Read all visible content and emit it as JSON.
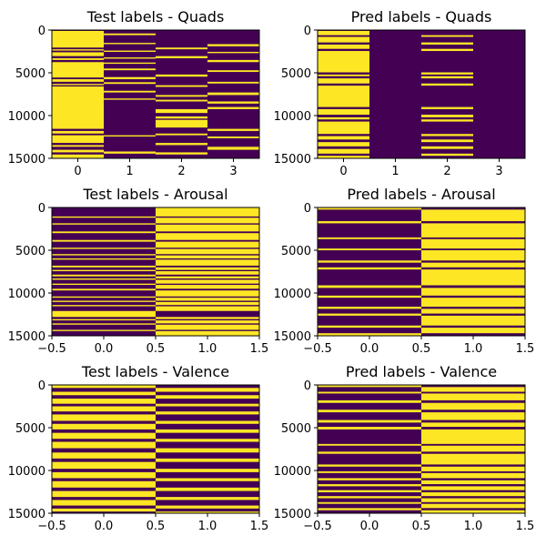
{
  "colors": {
    "class_zero": "#440154",
    "class_one": "#FDE725",
    "axes": "#000000",
    "background": "#FFFFFF"
  },
  "chart_data": [
    {
      "type": "heatmap",
      "title": "Test labels - Quads",
      "xlabel": "",
      "ylabel": "",
      "xlim": [
        -0.5,
        3.5
      ],
      "ylim": [
        15000,
        0
      ],
      "grid": false,
      "x_ticks": [
        0,
        1,
        2,
        3
      ],
      "y_ticks": [
        0,
        5000,
        10000,
        15000
      ],
      "columns": [
        0,
        1,
        2,
        3
      ],
      "values_description_scheme": "one-hot rows; each column lists [start,end] row ranges where value=1",
      "series": [
        {
          "column": 0,
          "ones": [
            [
              100,
              2050
            ],
            [
              2250,
              2400
            ],
            [
              2600,
              3050
            ],
            [
              3300,
              3500
            ],
            [
              3750,
              5550
            ],
            [
              5750,
              6050
            ],
            [
              6300,
              6450
            ],
            [
              6600,
              11550
            ],
            [
              11800,
              12100
            ],
            [
              12300,
              13200
            ],
            [
              13450,
              13650
            ],
            [
              14000,
              14300
            ],
            [
              14550,
              15050
            ]
          ]
        },
        {
          "column": 1,
          "ones": [
            [
              400,
              600
            ],
            [
              1500,
              1650
            ],
            [
              2400,
              2550
            ],
            [
              3200,
              3350
            ],
            [
              3800,
              3950
            ],
            [
              4500,
              4700
            ],
            [
              5500,
              5750
            ],
            [
              6100,
              6300
            ],
            [
              7100,
              7300
            ],
            [
              8000,
              8150
            ],
            [
              12300,
              12450
            ],
            [
              14200,
              14450
            ]
          ]
        },
        {
          "column": 2,
          "ones": [
            [
              2050,
              2250
            ],
            [
              3050,
              3300
            ],
            [
              5200,
              5450
            ],
            [
              6450,
              6650
            ],
            [
              7600,
              7800
            ],
            [
              8150,
              8350
            ],
            [
              9250,
              9700
            ],
            [
              10100,
              10350
            ],
            [
              10500,
              11400
            ],
            [
              12100,
              12300
            ],
            [
              13200,
              13450
            ],
            [
              14300,
              14550
            ]
          ]
        },
        {
          "column": 3,
          "ones": [
            [
              1650,
              1900
            ],
            [
              2550,
              2700
            ],
            [
              3500,
              3750
            ],
            [
              4700,
              4900
            ],
            [
              6050,
              6250
            ],
            [
              7300,
              7600
            ],
            [
              8350,
              8600
            ],
            [
              9000,
              9250
            ],
            [
              11550,
              11800
            ],
            [
              12450,
              12650
            ],
            [
              13650,
              14000
            ]
          ]
        }
      ]
    },
    {
      "type": "heatmap",
      "title": "Pred labels - Quads",
      "xlabel": "",
      "ylabel": "",
      "xlim": [
        -0.5,
        3.5
      ],
      "ylim": [
        15000,
        0
      ],
      "grid": false,
      "x_ticks": [
        0,
        1,
        2,
        3
      ],
      "y_ticks": [
        0,
        5000,
        10000,
        15000
      ],
      "columns": [
        0,
        1,
        2,
        3
      ],
      "values_description_scheme": "one-hot rows; each column lists [start,end] row ranges where value=1",
      "series": [
        {
          "column": 0,
          "ones": [
            [
              100,
              600
            ],
            [
              800,
              1450
            ],
            [
              1700,
              2200
            ],
            [
              2450,
              4950
            ],
            [
              5200,
              5400
            ],
            [
              5650,
              6250
            ],
            [
              6500,
              9000
            ],
            [
              9250,
              9900
            ],
            [
              10200,
              10450
            ],
            [
              10700,
              12150
            ],
            [
              12400,
              12800
            ],
            [
              13100,
              13600
            ],
            [
              13900,
              14450
            ],
            [
              14700,
              14950
            ]
          ]
        },
        {
          "column": 1,
          "ones": []
        },
        {
          "column": 2,
          "ones": [
            [
              600,
              800
            ],
            [
              1450,
              1700
            ],
            [
              2200,
              2450
            ],
            [
              4950,
              5200
            ],
            [
              5400,
              5650
            ],
            [
              6250,
              6500
            ],
            [
              9000,
              9250
            ],
            [
              9900,
              10200
            ],
            [
              10450,
              10700
            ],
            [
              12150,
              12400
            ],
            [
              12800,
              13100
            ],
            [
              13600,
              13900
            ],
            [
              14450,
              14700
            ]
          ]
        },
        {
          "column": 3,
          "ones": []
        }
      ]
    },
    {
      "type": "heatmap",
      "title": "Test labels - Arousal",
      "xlabel": "",
      "ylabel": "",
      "xlim": [
        -0.5,
        1.5
      ],
      "ylim": [
        15000,
        0
      ],
      "grid": false,
      "x_ticks": [
        -0.5,
        0.0,
        0.5,
        1.0,
        1.5
      ],
      "y_ticks": [
        0,
        5000,
        10000,
        15000
      ],
      "columns": [
        0,
        1
      ],
      "values_description_scheme": "one-hot rows; each column lists [start,end] row ranges where value=1",
      "series": [
        {
          "column": 0,
          "ones": [
            [
              1050,
              1200
            ],
            [
              1850,
              2000
            ],
            [
              2800,
              3000
            ],
            [
              3800,
              4000
            ],
            [
              4700,
              4850
            ],
            [
              5450,
              5600
            ],
            [
              5950,
              6100
            ],
            [
              6800,
              7000
            ],
            [
              7300,
              7450
            ],
            [
              7850,
              8050
            ],
            [
              8300,
              8450
            ],
            [
              8900,
              9050
            ],
            [
              9500,
              9700
            ],
            [
              10400,
              10550
            ],
            [
              10900,
              11050
            ],
            [
              11400,
              11550
            ],
            [
              12100,
              12800
            ],
            [
              13050,
              13200
            ],
            [
              13550,
              13700
            ],
            [
              14300,
              14450
            ]
          ]
        },
        {
          "column": 1,
          "ones": [
            [
              0,
              1050
            ],
            [
              1200,
              1850
            ],
            [
              2000,
              2800
            ],
            [
              3000,
              3800
            ],
            [
              4000,
              4700
            ],
            [
              4850,
              5450
            ],
            [
              5600,
              5950
            ],
            [
              6100,
              6800
            ],
            [
              7000,
              7300
            ],
            [
              7450,
              7850
            ],
            [
              8050,
              8300
            ],
            [
              8450,
              8900
            ],
            [
              9050,
              9500
            ],
            [
              9700,
              10400
            ],
            [
              10550,
              10900
            ],
            [
              11050,
              11400
            ],
            [
              11550,
              12100
            ],
            [
              12800,
              13050
            ],
            [
              13200,
              13550
            ],
            [
              13700,
              14300
            ],
            [
              14450,
              15100
            ]
          ]
        }
      ]
    },
    {
      "type": "heatmap",
      "title": "Pred labels - Arousal",
      "xlabel": "",
      "ylabel": "",
      "xlim": [
        -0.5,
        1.5
      ],
      "ylim": [
        15000,
        0
      ],
      "grid": false,
      "x_ticks": [
        -0.5,
        0.0,
        0.5,
        1.0,
        1.5
      ],
      "y_ticks": [
        0,
        5000,
        10000,
        15000
      ],
      "columns": [
        0,
        1
      ],
      "values_description_scheme": "one-hot rows; each column lists [start,end] row ranges where value=1",
      "series": [
        {
          "column": 0,
          "ones": [
            [
              0,
              250
            ],
            [
              1600,
              1850
            ],
            [
              3500,
              3700
            ],
            [
              4800,
              5000
            ],
            [
              6200,
              6450
            ],
            [
              7000,
              7250
            ],
            [
              9100,
              9400
            ],
            [
              10300,
              10550
            ],
            [
              11600,
              11850
            ],
            [
              12400,
              12650
            ],
            [
              13800,
              14050
            ],
            [
              14700,
              14950
            ]
          ]
        },
        {
          "column": 1,
          "ones": [
            [
              250,
              1600
            ],
            [
              1850,
              3500
            ],
            [
              3700,
              4800
            ],
            [
              5000,
              6200
            ],
            [
              6450,
              7000
            ],
            [
              7250,
              9100
            ],
            [
              9400,
              10300
            ],
            [
              10550,
              11600
            ],
            [
              11850,
              12400
            ],
            [
              12650,
              13800
            ],
            [
              14050,
              14700
            ],
            [
              14950,
              15100
            ]
          ]
        }
      ]
    },
    {
      "type": "heatmap",
      "title": "Test labels - Valence",
      "xlabel": "",
      "ylabel": "",
      "xlim": [
        -0.5,
        1.5
      ],
      "ylim": [
        15000,
        0
      ],
      "grid": false,
      "x_ticks": [
        -0.5,
        0.0,
        0.5,
        1.0,
        1.5
      ],
      "y_ticks": [
        0,
        5000,
        10000,
        15000
      ],
      "columns": [
        0,
        1
      ],
      "values_description_scheme": "one-hot rows; each column lists [start,end] row ranges where value=1",
      "series": [
        {
          "column": 0,
          "ones": [
            [
              0,
              350
            ],
            [
              800,
              1200
            ],
            [
              1600,
              2200
            ],
            [
              2500,
              3100
            ],
            [
              3450,
              4200
            ],
            [
              4550,
              5200
            ],
            [
              5600,
              6300
            ],
            [
              6650,
              7400
            ],
            [
              7900,
              8600
            ],
            [
              9000,
              9800
            ],
            [
              10200,
              10900
            ],
            [
              11250,
              12000
            ],
            [
              12400,
              13100
            ],
            [
              13450,
              14100
            ],
            [
              14450,
              14800
            ]
          ]
        },
        {
          "column": 1,
          "ones": [
            [
              350,
              800
            ],
            [
              1200,
              1600
            ],
            [
              2200,
              2500
            ],
            [
              3100,
              3450
            ],
            [
              4200,
              4550
            ],
            [
              5200,
              5600
            ],
            [
              6300,
              6650
            ],
            [
              7400,
              7900
            ],
            [
              8600,
              9000
            ],
            [
              9800,
              10200
            ],
            [
              10900,
              11250
            ],
            [
              12000,
              12400
            ],
            [
              13100,
              13450
            ],
            [
              14100,
              14450
            ],
            [
              14800,
              15100
            ]
          ]
        }
      ]
    },
    {
      "type": "heatmap",
      "title": "Pred labels - Valence",
      "xlabel": "",
      "ylabel": "",
      "xlim": [
        -0.5,
        1.5
      ],
      "ylim": [
        15000,
        0
      ],
      "grid": false,
      "x_ticks": [
        -0.5,
        0.0,
        0.5,
        1.0,
        1.5
      ],
      "y_ticks": [
        0,
        5000,
        10000,
        15000
      ],
      "columns": [
        0,
        1
      ],
      "values_description_scheme": "one-hot rows; each column lists [start,end] row ranges where value=1",
      "series": [
        {
          "column": 0,
          "ones": [
            [
              0,
              250
            ],
            [
              800,
              1000
            ],
            [
              1800,
              2100
            ],
            [
              2900,
              3200
            ],
            [
              4100,
              4400
            ],
            [
              4900,
              5200
            ],
            [
              6900,
              7100
            ],
            [
              7800,
              8050
            ],
            [
              9300,
              9550
            ],
            [
              10100,
              10300
            ],
            [
              10900,
              11150
            ],
            [
              11600,
              11850
            ],
            [
              12300,
              12550
            ],
            [
              13000,
              13250
            ],
            [
              13700,
              13900
            ],
            [
              14400,
              14650
            ]
          ]
        },
        {
          "column": 1,
          "ones": [
            [
              250,
              800
            ],
            [
              1000,
              1800
            ],
            [
              2100,
              2900
            ],
            [
              3200,
              4100
            ],
            [
              4400,
              4900
            ],
            [
              5200,
              6900
            ],
            [
              7100,
              7800
            ],
            [
              8050,
              9300
            ],
            [
              9550,
              10100
            ],
            [
              10300,
              10900
            ],
            [
              11150,
              11600
            ],
            [
              11850,
              12300
            ],
            [
              12550,
              13000
            ],
            [
              13250,
              13700
            ],
            [
              13900,
              14400
            ],
            [
              14650,
              15100
            ]
          ]
        }
      ]
    }
  ]
}
